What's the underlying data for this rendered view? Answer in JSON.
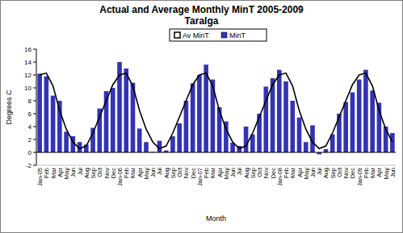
{
  "chart_data": {
    "type": "bar",
    "title": "Actual and Average Monthly MinT 2005-2009",
    "subtitle": "Taralga",
    "x_label": "Month",
    "y_label": "Degrees C",
    "categories": [
      "Jan-05",
      "Feb",
      "Mar",
      "Apr",
      "May",
      "Jun",
      "Jul",
      "Aug",
      "Sep",
      "Oct",
      "Nov",
      "Dec",
      "Jan-06",
      "Feb",
      "Mar",
      "Apr",
      "May",
      "Jun",
      "Jul",
      "Aug",
      "Sep",
      "Oct",
      "Nov",
      "Dec",
      "Jan-07",
      "Feb",
      "Mar",
      "Apr",
      "May",
      "Jun",
      "Jul",
      "Aug",
      "Sep",
      "Oct",
      "Nov",
      "Dec",
      "Jan-08",
      "Feb",
      "Mar",
      "Apr",
      "May",
      "Jun",
      "Jul",
      "Aug",
      "Sep",
      "Oct",
      "Nov",
      "Dec",
      "Jan-09",
      "Feb",
      "Mar",
      "Apr",
      "May",
      "Jun"
    ],
    "series": [
      {
        "name": "Av MinT",
        "type": "line",
        "color": "#000000",
        "values": [
          12.0,
          12.3,
          10.3,
          6.5,
          3.6,
          1.6,
          0.6,
          1.0,
          3.0,
          5.5,
          8.0,
          10.5,
          12.0,
          12.3,
          10.3,
          6.5,
          3.6,
          1.6,
          0.6,
          1.0,
          3.0,
          5.5,
          8.0,
          10.5,
          12.0,
          12.3,
          10.3,
          6.5,
          3.6,
          1.6,
          0.6,
          1.0,
          3.0,
          5.5,
          8.0,
          10.5,
          12.0,
          12.3,
          10.3,
          6.5,
          3.6,
          1.6,
          0.6,
          1.0,
          3.0,
          5.5,
          8.0,
          10.5,
          12.0,
          12.3,
          10.3,
          6.5,
          3.6,
          1.6
        ]
      },
      {
        "name": "MinT",
        "type": "bar",
        "color": "#3333b3",
        "values": [
          12.2,
          11.8,
          8.8,
          8.0,
          3.2,
          2.5,
          1.6,
          1.2,
          3.8,
          6.8,
          9.5,
          10.0,
          14.0,
          13.0,
          10.8,
          3.7,
          1.6,
          0.1,
          1.8,
          0.3,
          2.5,
          4.5,
          8.0,
          10.7,
          12.0,
          13.6,
          11.3,
          7.0,
          4.8,
          1.5,
          1.0,
          4.0,
          2.8,
          6.0,
          10.2,
          11.5,
          12.8,
          11.0,
          8.0,
          5.4,
          1.6,
          4.2,
          -0.3,
          0.5,
          2.8,
          6.0,
          7.8,
          9.3,
          11.3,
          12.8,
          9.6,
          7.7,
          4.0,
          3.0
        ]
      }
    ],
    "ylim": [
      -2,
      16
    ],
    "yticks": [
      -2,
      0,
      2,
      4,
      6,
      8,
      10,
      12,
      14,
      16
    ],
    "legend": "top"
  }
}
